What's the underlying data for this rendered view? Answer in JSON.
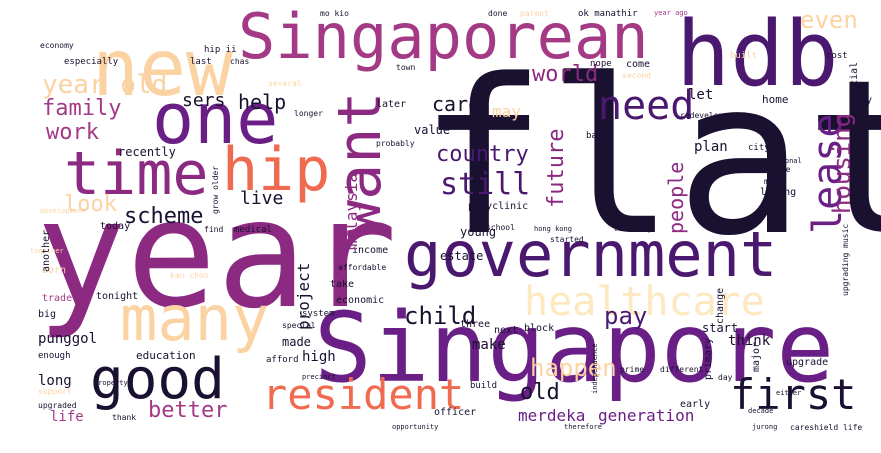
{
  "palette": {
    "dark": "#1a1030",
    "deep_purple": "#4b1870",
    "purple": "#6a1f86",
    "magenta": "#8c2a82",
    "plum": "#a43a86",
    "rose": "#c94a6e",
    "coral": "#ef6a4f",
    "salmon": "#f59a6d",
    "peach": "#fbd3a3",
    "cream": "#fde8bf"
  },
  "words": {
    "flat": "flat",
    "year": "year",
    "singapore": "Singapore",
    "singaporean": "Singaporean",
    "hdb": "hdb",
    "government": "government",
    "new": "new",
    "one": "one",
    "time": "time",
    "hip": "hip",
    "want": "want",
    "many": "many",
    "healthcare": "healthcare",
    "good": "good",
    "resident": "resident",
    "first": "first",
    "need": "need",
    "lease": "lease",
    "housing": "housing",
    "still": "still",
    "year_old": "year old",
    "family": "family",
    "work": "work",
    "help": "help",
    "world": "world",
    "sers": "sers",
    "care": "care",
    "even": "even",
    "country": "country",
    "future": "future",
    "people": "people",
    "scheme": "scheme",
    "look": "look",
    "live": "live",
    "malaysia": "malaysia",
    "project": "project",
    "child": "child",
    "pay": "pay",
    "happen": "happen",
    "old": "old",
    "better": "better",
    "make": "make",
    "estate": "estate",
    "merdeka": "merdeka",
    "generation": "generation",
    "recently": "recently",
    "punggol": "punggol",
    "long": "long",
    "life": "life",
    "high": "high",
    "made": "made",
    "education": "education",
    "plan": "plan",
    "home": "home",
    "value": "value",
    "let": "let",
    "may": "may",
    "young": "young",
    "another": "another",
    "today": "today",
    "born": "born",
    "trade": "trade",
    "big": "big",
    "three": "three",
    "next": "next",
    "block": "block",
    "start": "start",
    "think": "think",
    "primary": "primary",
    "change": "change",
    "upgrade": "upgrade",
    "early": "early",
    "major": "major",
    "buy": "buy",
    "cost": "cost",
    "built": "built",
    "mo_kio": "mo kio",
    "done": "done",
    "parent": "parent",
    "ok_manathir": "ok manathir",
    "year_ago": "year ago",
    "economic": "economic",
    "income": "income",
    "polyclinic": "polyclinic",
    "medical": "medical",
    "later": "later",
    "come": "come",
    "town": "town",
    "back": "back",
    "take": "take",
    "tonight": "tonight",
    "affordable": "affordable",
    "build": "build",
    "enough": "enough",
    "support": "support",
    "upgraded": "upgraded",
    "thank": "thank",
    "afford": "afford",
    "officer": "officer",
    "system": "system",
    "special": "special",
    "school": "school",
    "living": "living",
    "much": "much",
    "continue": "continue",
    "city": "city",
    "national": "national",
    "financial": "financial",
    "upgrading_music": "upgrading music",
    "decade": "decade",
    "economy": "economy",
    "especially": "especially",
    "second": "second",
    "older": "older",
    "nope": "nope",
    "several": "several",
    "last": "last",
    "chas": "chas",
    "hip_ii": "hip ii",
    "redevelop": "redevelop",
    "probably": "probably",
    "longer": "longer",
    "development": "development",
    "together": "together",
    "property": "property",
    "precinct": "precinct",
    "different": "different",
    "prime": "prime",
    "day": "day",
    "either": "either",
    "estate_b": "estate",
    "young_b": "young",
    "opportunity": "opportunity",
    "therefore": "therefore",
    "jurong": "jurong",
    "careshield_life": "careshield life",
    "independence": "independence",
    "community": "community",
    "hong_kong": "hong kong",
    "grow_older": "grow older",
    "find": "find",
    "spending": "spending",
    "minister": "minister",
    "generous": "generous",
    "become": "become",
    "already": "already",
    "voucher": "voucher",
    "getting": "getting",
    "kallang": "kallang",
    "started": "started",
    "plus": "plus",
    "working": "working",
    "news": "news",
    "mind": "mind",
    "put": "put",
    "also": "also",
    "well": "well",
    "ang_mo": "ang mo",
    "bto": "bto",
    "kin": "kin",
    "etc": "etc",
    "shop": "shop",
    "term": "term",
    "ng": "ng",
    "know": "know",
    "sold": "sold",
    "must": "must",
    "keep": "keep",
    "set": "set",
    "ie": "ie",
    "resale": "resale",
    "rate": "rate",
    "ensure": "ensure",
    "room": "room",
    "assist": "assist",
    "soon": "soon",
    "lot": "lot",
    "public": "public",
    "kan_chon": "kan chon",
    "kovan": "kovan",
    "fund": "fund",
    "vision": "vision",
    "sg": "sg",
    "stage": "stage",
    "bright": "bright",
    "rather": "rather",
    "age": "age",
    "show": "show",
    "mean": "mean",
    "rest": "rest",
    "point": "point",
    "cpf": "cpf",
    "though": "though",
    "sure": "sure",
    "ten": "ten",
    "option": "option",
    "price": "price",
    "market": "market",
    "hand": "hand",
    "low": "low",
    "cut": "cut",
    "sell": "sell"
  }
}
